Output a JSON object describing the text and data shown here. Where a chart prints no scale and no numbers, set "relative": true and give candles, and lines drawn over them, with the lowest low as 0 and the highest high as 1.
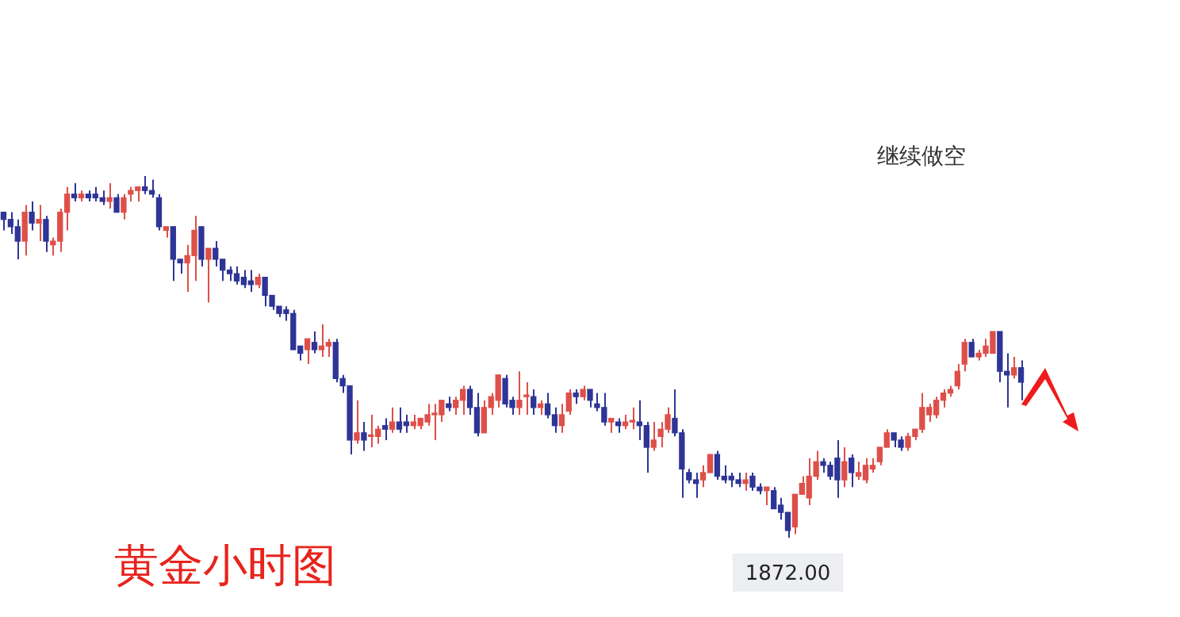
{
  "chart_data": {
    "type": "candlestick",
    "title": "黄金小时图",
    "relative": true,
    "annotations": [
      "继续做空",
      "1872.00"
    ],
    "colors": [
      "#2e3596",
      "#2e3596",
      "#2e3596",
      "#dd5049",
      "#2e3596",
      "#dd5049",
      "#2e3596",
      "#dd5049",
      "#dd5049",
      "#dd5049",
      "#2e3596",
      "#dd5049",
      "#2e3596",
      "#2e3596",
      "#2e3596",
      "#dd5049",
      "#2e3596",
      "#dd5049",
      "#dd5049",
      "#dd5049",
      "#2e3596",
      "#2e3596",
      "#2e3596",
      "#dd5049",
      "#2e3596",
      "#2e3596",
      "#dd5049",
      "#dd5049",
      "#2e3596",
      "#dd5049",
      "#2e3596",
      "#2e3596",
      "#2e3596",
      "#2e3596",
      "#2e3596",
      "#2e3596",
      "#dd5049",
      "#2e3596",
      "#2e3596",
      "#2e3596",
      "#2e3596",
      "#2e3596",
      "#2e3596",
      "#dd5049",
      "#2e3596",
      "#dd5049",
      "#dd5049",
      "#2e3596",
      "#2e3596",
      "#2e3596",
      "#dd5049",
      "#2e3596",
      "#dd5049",
      "#dd5049",
      "#2e3596",
      "#dd5049",
      "#2e3596",
      "#2e3596",
      "#dd5049",
      "#dd5049",
      "#dd5049",
      "#dd5049",
      "#dd5049",
      "#2e3596",
      "#dd5049",
      "#dd5049",
      "#2e3596",
      "#2e3596",
      "#dd5049",
      "#dd5049",
      "#dd5049",
      "#2e3596",
      "#2e3596",
      "#dd5049",
      "#dd5049",
      "#2e3596",
      "#dd5049",
      "#2e3596",
      "#2e3596",
      "#dd5049",
      "#dd5049",
      "#2e3596",
      "#dd5049",
      "#2e3596",
      "#2e3596",
      "#2e3596",
      "#dd5049",
      "#2e3596",
      "#dd5049",
      "#dd5049",
      "#2e3596",
      "#2e3596",
      "#dd5049",
      "#dd5049",
      "#dd5049",
      "#2e3596",
      "#2e3596",
      "#2e3596",
      "#2e3596",
      "#dd5049",
      "#dd5049",
      "#2e3596",
      "#2e3596",
      "#2e3596",
      "#2e3596",
      "#dd5049",
      "#2e3596",
      "#2e3596",
      "#dd5049",
      "#2e3596",
      "#2e3596",
      "#2e3596",
      "#dd5049",
      "#dd5049",
      "#dd5049",
      "#dd5049",
      "#2e3596",
      "#2e3596",
      "#2e3596",
      "#dd5049",
      "#2e3596",
      "#dd5049",
      "#dd5049",
      "#dd5049",
      "#dd5049",
      "#dd5049",
      "#2e3596",
      "#2e3596",
      "#dd5049",
      "#dd5049",
      "#dd5049",
      "#dd5049",
      "#dd5049",
      "#dd5049",
      "#dd5049",
      "#dd5049",
      "#dd5049",
      "#2e3596",
      "#dd5049",
      "#dd5049",
      "#dd5049",
      "#2e3596",
      "#2e3596",
      "#dd5049",
      "#2e3596"
    ],
    "categories": [
      null,
      null,
      null,
      null,
      null,
      null,
      null,
      null,
      null,
      null,
      null,
      null,
      null,
      null,
      null,
      null,
      null,
      null,
      null,
      null,
      null,
      null,
      null,
      null,
      null,
      null,
      null,
      null,
      null,
      null,
      null,
      null,
      null,
      null,
      null,
      null,
      null,
      null,
      null,
      null,
      null,
      null,
      null,
      null,
      null,
      null,
      null,
      null,
      null,
      null,
      null,
      null,
      null,
      null,
      null,
      null,
      null,
      null,
      null,
      null,
      null,
      null,
      null,
      null,
      null,
      null,
      null,
      null,
      null,
      null,
      null,
      null,
      null,
      null,
      null,
      null,
      null,
      null,
      null,
      null,
      null,
      null,
      null,
      null,
      null,
      null,
      null,
      null,
      null,
      null,
      null,
      null,
      null,
      null,
      null,
      null,
      null,
      null,
      null,
      null,
      null,
      null,
      null,
      null,
      null,
      null,
      null,
      null,
      null,
      null,
      null,
      null,
      null,
      null,
      null,
      null,
      null,
      null,
      null,
      null,
      null,
      null,
      null,
      null,
      null,
      null,
      null,
      null,
      null,
      null,
      null,
      null,
      null,
      null,
      null,
      null,
      null,
      null,
      null,
      null,
      null,
      null,
      null,
      null,
      null
    ],
    "ohlc": [
      [
        0.9,
        0.9,
        0.85,
        0.88
      ],
      [
        0.88,
        0.9,
        0.84,
        0.86
      ],
      [
        0.86,
        0.88,
        0.77,
        0.82
      ],
      [
        0.82,
        0.92,
        0.78,
        0.9
      ],
      [
        0.9,
        0.93,
        0.85,
        0.87
      ],
      [
        0.87,
        0.92,
        0.82,
        0.88
      ],
      [
        0.88,
        0.89,
        0.79,
        0.82
      ],
      [
        0.81,
        0.83,
        0.78,
        0.82
      ],
      [
        0.82,
        0.91,
        0.79,
        0.9
      ],
      [
        0.9,
        0.97,
        0.85,
        0.95
      ],
      [
        0.95,
        0.98,
        0.93,
        0.94
      ],
      [
        0.94,
        0.96,
        0.93,
        0.95
      ],
      [
        0.95,
        0.96,
        0.93,
        0.94
      ],
      [
        0.95,
        0.97,
        0.93,
        0.94
      ],
      [
        0.94,
        0.96,
        0.92,
        0.93
      ],
      [
        0.93,
        0.98,
        0.91,
        0.94
      ],
      [
        0.94,
        0.95,
        0.9,
        0.9
      ],
      [
        0.9,
        0.95,
        0.88,
        0.94
      ],
      [
        0.95,
        0.97,
        0.93,
        0.96
      ],
      [
        0.96,
        0.97,
        0.93,
        0.97
      ],
      [
        0.97,
        1.0,
        0.95,
        0.96
      ],
      [
        0.96,
        0.99,
        0.94,
        0.95
      ],
      [
        0.94,
        0.95,
        0.85,
        0.86
      ],
      [
        0.85,
        0.86,
        0.83,
        0.86
      ],
      [
        0.86,
        0.86,
        0.71,
        0.77
      ],
      [
        0.77,
        0.77,
        0.73,
        0.76
      ],
      [
        0.76,
        0.81,
        0.68,
        0.78
      ],
      [
        0.78,
        0.89,
        0.71,
        0.85
      ],
      [
        0.86,
        0.86,
        0.75,
        0.77
      ],
      [
        0.77,
        0.8,
        0.65,
        0.8
      ],
      [
        0.8,
        0.82,
        0.75,
        0.77
      ],
      [
        0.77,
        0.77,
        0.71,
        0.74
      ],
      [
        0.74,
        0.75,
        0.71,
        0.73
      ],
      [
        0.73,
        0.75,
        0.7,
        0.71
      ],
      [
        0.72,
        0.74,
        0.69,
        0.7
      ],
      [
        0.71,
        0.74,
        0.68,
        0.7
      ],
      [
        0.7,
        0.73,
        0.69,
        0.72
      ],
      [
        0.72,
        0.72,
        0.64,
        0.67
      ],
      [
        0.67,
        0.67,
        0.63,
        0.64
      ],
      [
        0.64,
        0.64,
        0.61,
        0.62
      ],
      [
        0.63,
        0.64,
        0.6,
        0.62
      ],
      [
        0.62,
        0.63,
        0.52,
        0.52
      ],
      [
        0.53,
        0.53,
        0.49,
        0.51
      ],
      [
        0.52,
        0.55,
        0.48,
        0.55
      ],
      [
        0.54,
        0.57,
        0.51,
        0.52
      ],
      [
        0.52,
        0.59,
        0.5,
        0.53
      ],
      [
        0.53,
        0.55,
        0.5,
        0.54
      ],
      [
        0.54,
        0.55,
        0.43,
        0.44
      ],
      [
        0.44,
        0.45,
        0.4,
        0.42
      ],
      [
        0.42,
        0.42,
        0.23,
        0.27
      ],
      [
        0.27,
        0.38,
        0.26,
        0.29
      ],
      [
        0.29,
        0.32,
        0.24,
        0.27
      ],
      [
        0.28,
        0.34,
        0.25,
        0.28
      ],
      [
        0.28,
        0.31,
        0.26,
        0.3
      ],
      [
        0.31,
        0.33,
        0.27,
        0.3
      ],
      [
        0.3,
        0.36,
        0.29,
        0.32
      ],
      [
        0.32,
        0.36,
        0.29,
        0.3
      ],
      [
        0.32,
        0.34,
        0.29,
        0.31
      ],
      [
        0.31,
        0.34,
        0.3,
        0.32
      ],
      [
        0.31,
        0.33,
        0.3,
        0.33
      ],
      [
        0.32,
        0.37,
        0.31,
        0.34
      ],
      [
        0.34,
        0.37,
        0.27,
        0.34
      ],
      [
        0.34,
        0.38,
        0.32,
        0.38
      ],
      [
        0.37,
        0.39,
        0.35,
        0.36
      ],
      [
        0.36,
        0.39,
        0.34,
        0.38
      ],
      [
        0.38,
        0.42,
        0.34,
        0.41
      ],
      [
        0.41,
        0.42,
        0.34,
        0.36
      ],
      [
        0.36,
        0.4,
        0.28,
        0.29
      ],
      [
        0.29,
        0.38,
        0.29,
        0.36
      ],
      [
        0.36,
        0.4,
        0.34,
        0.39
      ],
      [
        0.38,
        0.45,
        0.36,
        0.45
      ],
      [
        0.44,
        0.45,
        0.36,
        0.37
      ],
      [
        0.38,
        0.39,
        0.34,
        0.36
      ],
      [
        0.36,
        0.46,
        0.34,
        0.38
      ],
      [
        0.39,
        0.43,
        0.34,
        0.39
      ],
      [
        0.39,
        0.41,
        0.34,
        0.36
      ],
      [
        0.36,
        0.38,
        0.34,
        0.37
      ],
      [
        0.37,
        0.4,
        0.33,
        0.34
      ],
      [
        0.34,
        0.36,
        0.29,
        0.31
      ],
      [
        0.31,
        0.37,
        0.29,
        0.34
      ],
      [
        0.35,
        0.41,
        0.34,
        0.4
      ],
      [
        0.4,
        0.41,
        0.37,
        0.39
      ],
      [
        0.39,
        0.42,
        0.38,
        0.41
      ],
      [
        0.41,
        0.41,
        0.36,
        0.38
      ],
      [
        0.37,
        0.4,
        0.35,
        0.36
      ],
      [
        0.36,
        0.4,
        0.31,
        0.32
      ],
      [
        0.32,
        0.33,
        0.29,
        0.33
      ],
      [
        0.32,
        0.33,
        0.29,
        0.31
      ],
      [
        0.31,
        0.34,
        0.3,
        0.32
      ],
      [
        0.32,
        0.36,
        0.3,
        0.32
      ],
      [
        0.32,
        0.38,
        0.27,
        0.31
      ],
      [
        0.31,
        0.32,
        0.18,
        0.25
      ],
      [
        0.25,
        0.32,
        0.24,
        0.27
      ],
      [
        0.28,
        0.32,
        0.25,
        0.3
      ],
      [
        0.3,
        0.36,
        0.29,
        0.34
      ],
      [
        0.33,
        0.41,
        0.28,
        0.29
      ],
      [
        0.29,
        0.3,
        0.11,
        0.19
      ],
      [
        0.18,
        0.19,
        0.15,
        0.16
      ],
      [
        0.16,
        0.18,
        0.11,
        0.15
      ],
      [
        0.16,
        0.2,
        0.14,
        0.18
      ],
      [
        0.18,
        0.23,
        0.18,
        0.23
      ],
      [
        0.23,
        0.24,
        0.16,
        0.17
      ],
      [
        0.17,
        0.2,
        0.15,
        0.16
      ],
      [
        0.17,
        0.18,
        0.14,
        0.16
      ],
      [
        0.16,
        0.18,
        0.14,
        0.15
      ],
      [
        0.15,
        0.18,
        0.13,
        0.16
      ],
      [
        0.17,
        0.18,
        0.13,
        0.14
      ],
      [
        0.14,
        0.15,
        0.12,
        0.13
      ],
      [
        0.13,
        0.14,
        0.09,
        0.14
      ],
      [
        0.13,
        0.14,
        0.08,
        0.08
      ],
      [
        0.09,
        0.11,
        0.05,
        0.07
      ],
      [
        0.07,
        0.07,
        0.0,
        0.02
      ],
      [
        0.03,
        0.12,
        0.01,
        0.12
      ],
      [
        0.12,
        0.17,
        0.12,
        0.15
      ],
      [
        0.11,
        0.22,
        0.09,
        0.17
      ],
      [
        0.17,
        0.24,
        0.16,
        0.21
      ],
      [
        0.21,
        0.22,
        0.18,
        0.2
      ],
      [
        0.2,
        0.21,
        0.16,
        0.17
      ],
      [
        0.22,
        0.27,
        0.11,
        0.16
      ],
      [
        0.16,
        0.25,
        0.14,
        0.21
      ],
      [
        0.22,
        0.23,
        0.14,
        0.18
      ],
      [
        0.17,
        0.21,
        0.16,
        0.18
      ],
      [
        0.16,
        0.22,
        0.15,
        0.2
      ],
      [
        0.19,
        0.22,
        0.18,
        0.2
      ],
      [
        0.21,
        0.25,
        0.2,
        0.25
      ],
      [
        0.25,
        0.3,
        0.25,
        0.29
      ],
      [
        0.29,
        0.29,
        0.25,
        0.27
      ],
      [
        0.27,
        0.28,
        0.24,
        0.25
      ],
      [
        0.25,
        0.29,
        0.24,
        0.28
      ],
      [
        0.28,
        0.3,
        0.27,
        0.3
      ],
      [
        0.3,
        0.4,
        0.29,
        0.36
      ],
      [
        0.34,
        0.37,
        0.32,
        0.36
      ],
      [
        0.34,
        0.39,
        0.33,
        0.38
      ],
      [
        0.38,
        0.41,
        0.36,
        0.4
      ],
      [
        0.4,
        0.42,
        0.39,
        0.41
      ],
      [
        0.42,
        0.48,
        0.41,
        0.46
      ],
      [
        0.48,
        0.55,
        0.46,
        0.54
      ],
      [
        0.54,
        0.55,
        0.5,
        0.5
      ],
      [
        0.5,
        0.52,
        0.49,
        0.51
      ],
      [
        0.51,
        0.55,
        0.5,
        0.53
      ],
      [
        0.51,
        0.57,
        0.51,
        0.57
      ],
      [
        0.57,
        0.57,
        0.43,
        0.46
      ],
      [
        0.46,
        0.51,
        0.36,
        0.45
      ],
      [
        0.45,
        0.5,
        0.44,
        0.47
      ],
      [
        0.47,
        0.49,
        0.38,
        0.43
      ]
    ]
  }
}
